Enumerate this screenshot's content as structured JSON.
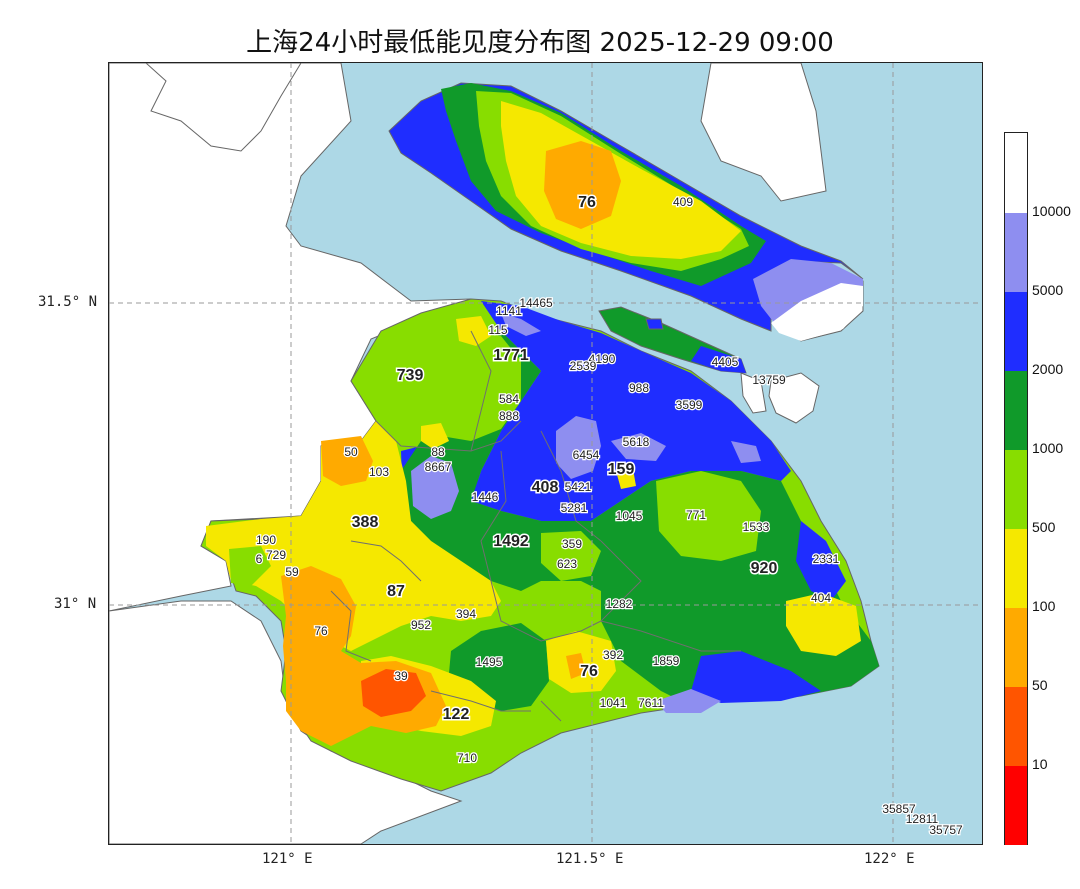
{
  "title": "上海24小时最低能见度分布图 2025-12-29 09:00",
  "axes": {
    "lat_labels": [
      "31.5° N",
      "31° N"
    ],
    "lon_labels": [
      "121° E",
      "121.5° E",
      "122° E"
    ]
  },
  "colorbar": {
    "levels": [
      {
        "label": "",
        "color": "#ff0000"
      },
      {
        "label": "10",
        "color": "#ff5500"
      },
      {
        "label": "50",
        "color": "#ffaa00"
      },
      {
        "label": "100",
        "color": "#f5e800"
      },
      {
        "label": "500",
        "color": "#88dd00"
      },
      {
        "label": "1000",
        "color": "#109a2a"
      },
      {
        "label": "2000",
        "color": "#1f2dff"
      },
      {
        "label": "5000",
        "color": "#8e8ef0"
      },
      {
        "label": "10000",
        "color": "#ffffff"
      }
    ]
  },
  "colors": {
    "sea": "#add8e6",
    "land": "#ffffff",
    "border": "#666666"
  },
  "station_values": [
    {
      "text": "76",
      "bold": true
    },
    {
      "text": "409",
      "bold": false
    },
    {
      "text": "14465",
      "bold": false
    },
    {
      "text": "1141",
      "bold": false
    },
    {
      "text": "115",
      "bold": false
    },
    {
      "text": "1771",
      "bold": true
    },
    {
      "text": "4190",
      "bold": false
    },
    {
      "text": "2539",
      "bold": false
    },
    {
      "text": "4405",
      "bold": false
    },
    {
      "text": "13759",
      "bold": false
    },
    {
      "text": "739",
      "bold": true
    },
    {
      "text": "584",
      "bold": false
    },
    {
      "text": "888",
      "bold": false
    },
    {
      "text": "988",
      "bold": false
    },
    {
      "text": "3599",
      "bold": false
    },
    {
      "text": "5618",
      "bold": false
    },
    {
      "text": "50",
      "bold": false
    },
    {
      "text": "103",
      "bold": false
    },
    {
      "text": "88",
      "bold": false
    },
    {
      "text": "8667",
      "bold": false
    },
    {
      "text": "6454",
      "bold": false
    },
    {
      "text": "159",
      "bold": true
    },
    {
      "text": "1446",
      "bold": false
    },
    {
      "text": "408",
      "bold": true
    },
    {
      "text": "5421",
      "bold": false
    },
    {
      "text": "5281",
      "bold": false
    },
    {
      "text": "1045",
      "bold": false
    },
    {
      "text": "771",
      "bold": false
    },
    {
      "text": "1533",
      "bold": false
    },
    {
      "text": "388",
      "bold": true
    },
    {
      "text": "190",
      "bold": false
    },
    {
      "text": "729",
      "bold": false
    },
    {
      "text": "6",
      "bold": false
    },
    {
      "text": "59",
      "bold": false
    },
    {
      "text": "1492",
      "bold": true
    },
    {
      "text": "359",
      "bold": false
    },
    {
      "text": "623",
      "bold": false
    },
    {
      "text": "920",
      "bold": true
    },
    {
      "text": "2331",
      "bold": false
    },
    {
      "text": "87",
      "bold": true
    },
    {
      "text": "404",
      "bold": false
    },
    {
      "text": "1282",
      "bold": false
    },
    {
      "text": "394",
      "bold": false
    },
    {
      "text": "952",
      "bold": false
    },
    {
      "text": "76",
      "bold": false
    },
    {
      "text": "1495",
      "bold": false
    },
    {
      "text": "392",
      "bold": false
    },
    {
      "text": "1859",
      "bold": false
    },
    {
      "text": "76",
      "bold": true
    },
    {
      "text": "39",
      "bold": false
    },
    {
      "text": "122",
      "bold": true
    },
    {
      "text": "1041",
      "bold": false
    },
    {
      "text": "7611",
      "bold": false
    },
    {
      "text": "710",
      "bold": false
    },
    {
      "text": "35857",
      "bold": false
    },
    {
      "text": "12811",
      "bold": false
    },
    {
      "text": "35757",
      "bold": false
    }
  ]
}
